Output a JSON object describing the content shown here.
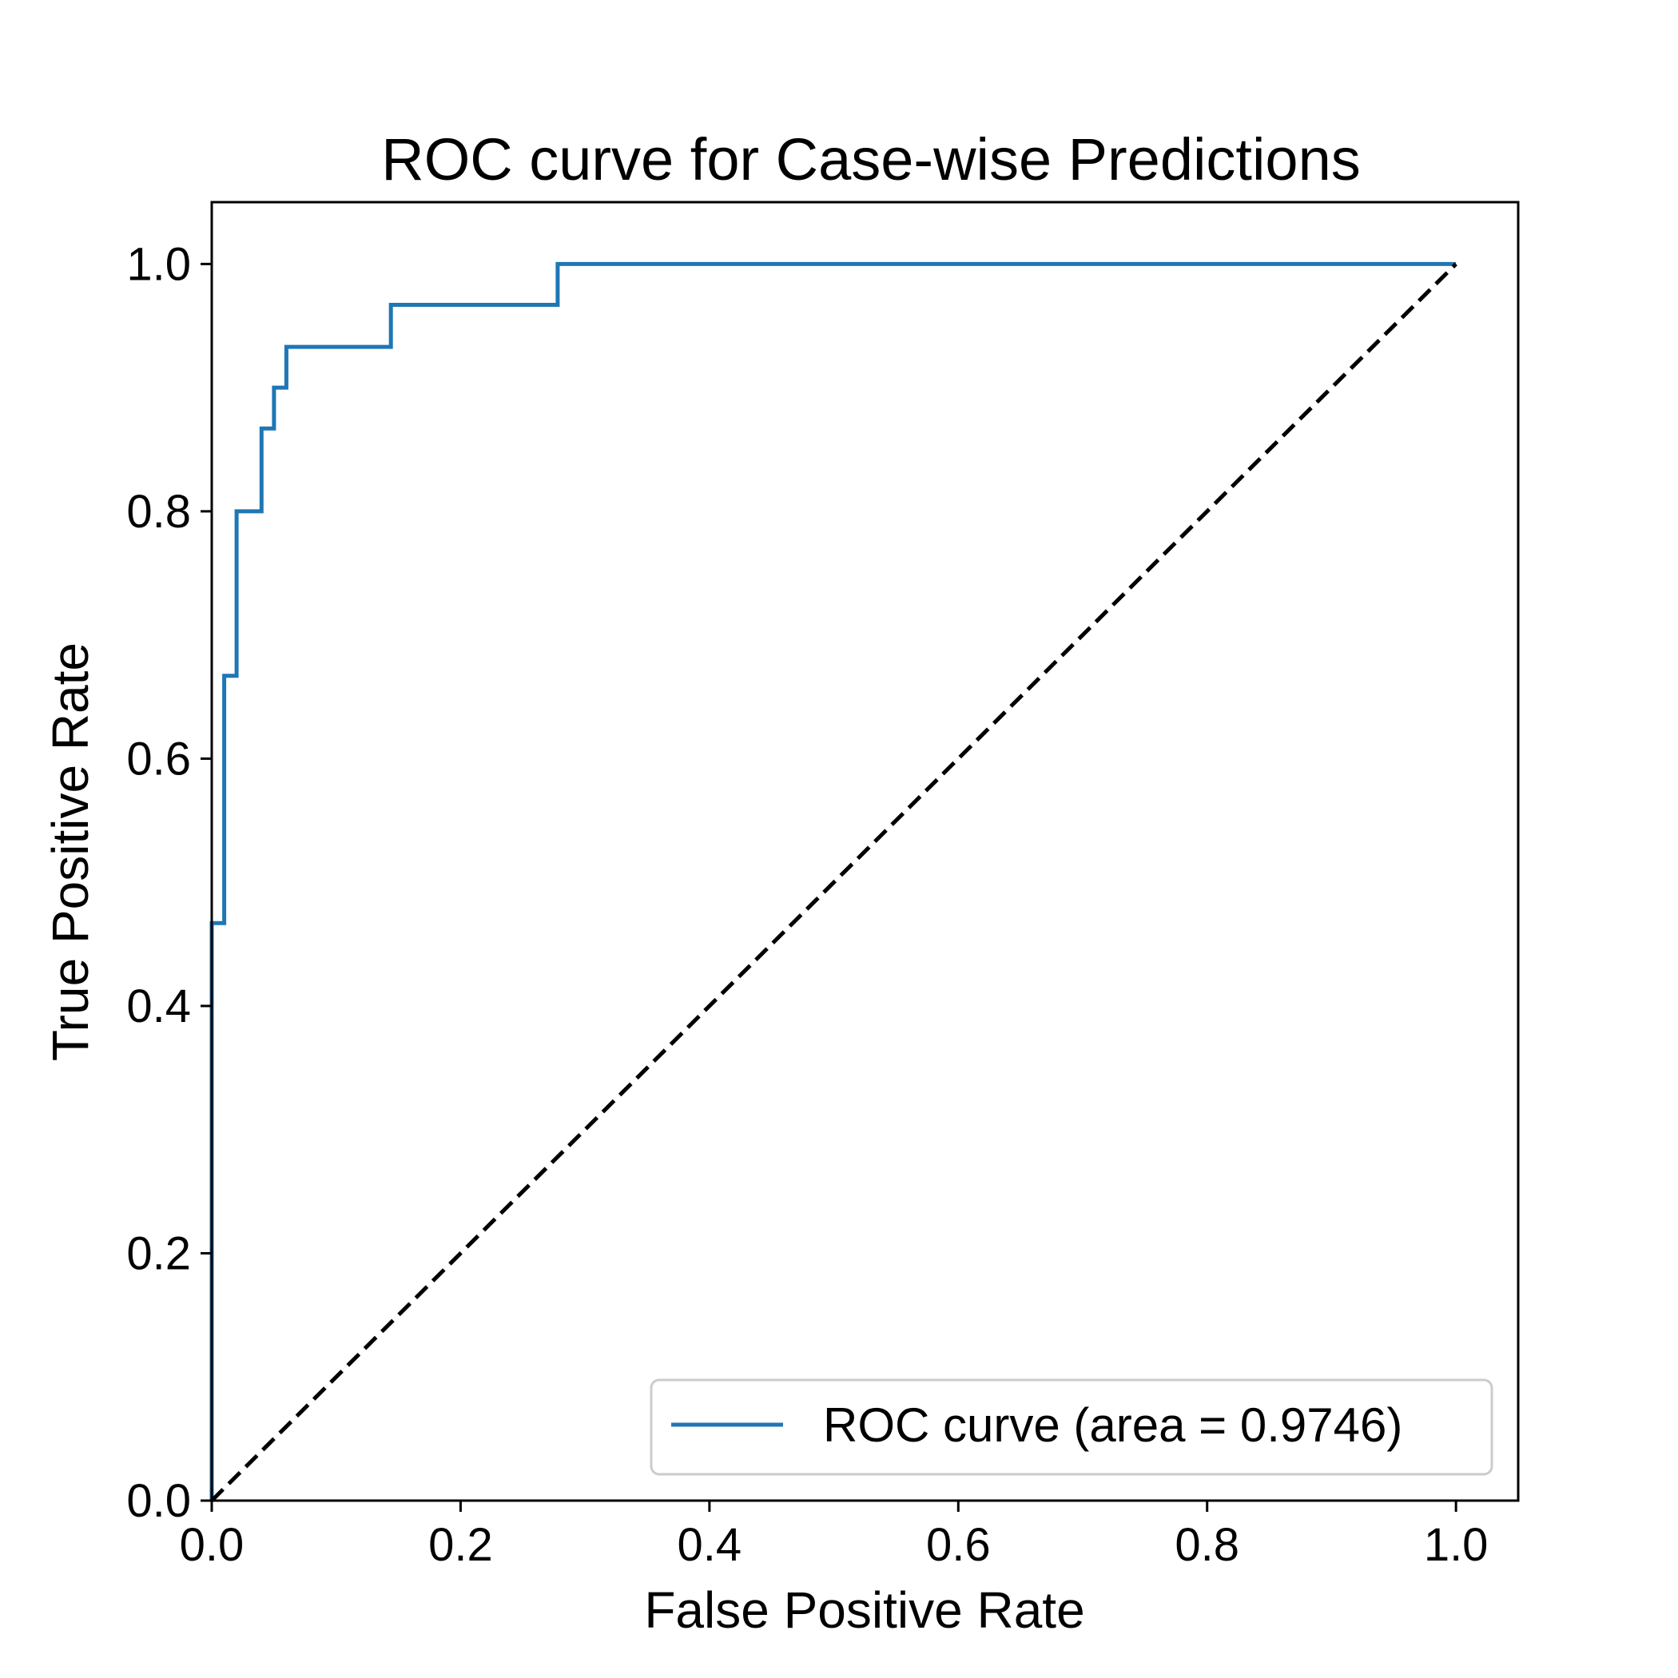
{
  "chart_data": {
    "type": "line",
    "title": "ROC curve for Case-wise Predictions",
    "xlabel": "False Positive Rate",
    "ylabel": "True Positive Rate",
    "xlim": [
      0.0,
      1.05
    ],
    "ylim": [
      0.0,
      1.05
    ],
    "xticks": [
      0.0,
      0.2,
      0.4,
      0.6,
      0.8,
      1.0
    ],
    "xtick_labels": [
      "0.0",
      "0.2",
      "0.4",
      "0.6",
      "0.8",
      "1.0"
    ],
    "yticks": [
      0.0,
      0.2,
      0.4,
      0.6,
      0.8,
      1.0
    ],
    "ytick_labels": [
      "0.0",
      "0.2",
      "0.4",
      "0.6",
      "0.8",
      "1.0"
    ],
    "grid": false,
    "legend_position": "lower-right",
    "series": [
      {
        "name": "ROC curve (area = 0.9746)",
        "color": "#1f77b4",
        "style": "solid",
        "x": [
          0.0,
          0.0,
          0.0,
          0.01,
          0.01,
          0.02,
          0.02,
          0.04,
          0.04,
          0.05,
          0.05,
          0.06,
          0.06,
          0.144,
          0.144,
          0.278,
          0.278,
          1.0
        ],
        "y": [
          0.0,
          0.0,
          0.467,
          0.467,
          0.667,
          0.667,
          0.8,
          0.8,
          0.867,
          0.867,
          0.9,
          0.9,
          0.933,
          0.933,
          0.967,
          0.967,
          1.0,
          1.0
        ]
      },
      {
        "name": "",
        "color": "#000000",
        "style": "dashed",
        "x": [
          0.0,
          1.0
        ],
        "y": [
          0.0,
          1.0
        ]
      }
    ]
  }
}
